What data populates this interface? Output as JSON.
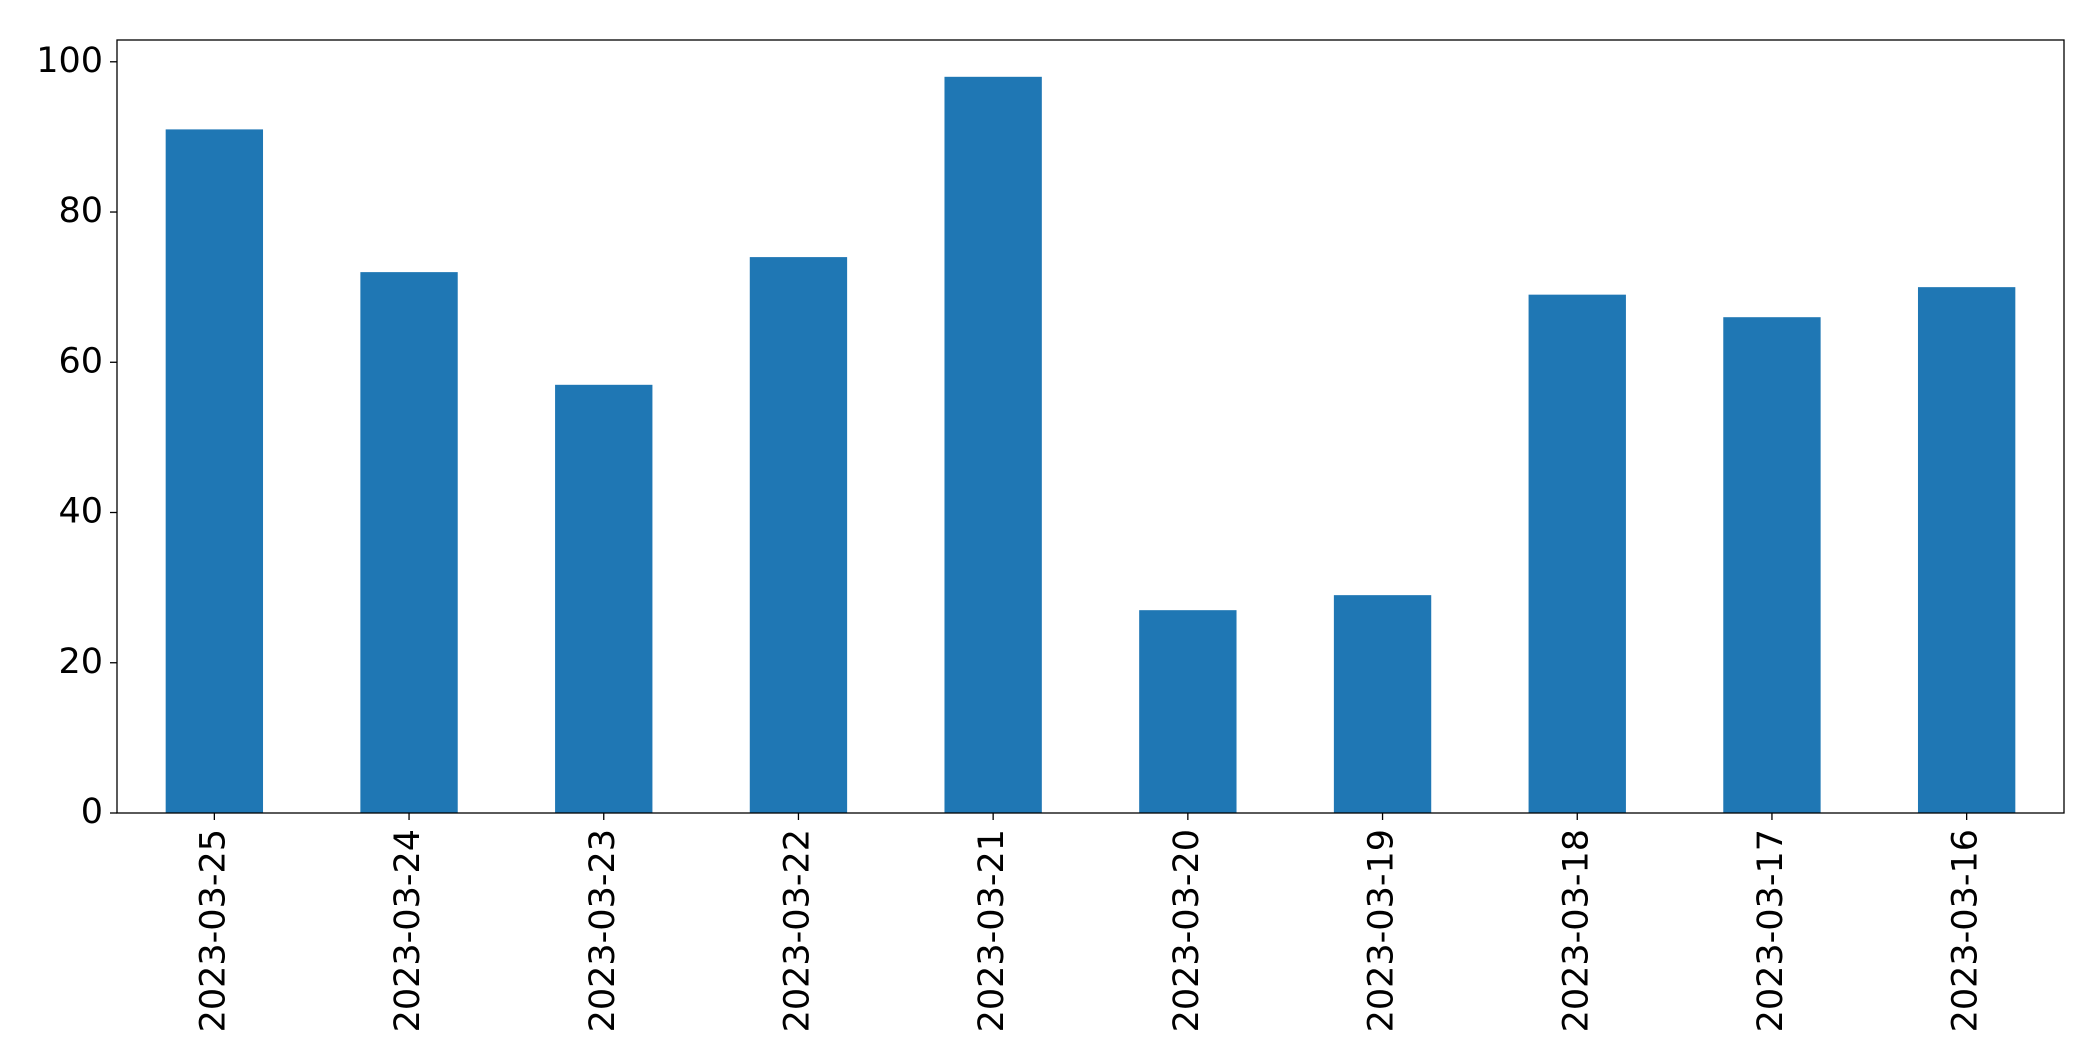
{
  "chart_data": {
    "type": "bar",
    "categories": [
      "2023-03-25",
      "2023-03-24",
      "2023-03-23",
      "2023-03-22",
      "2023-03-21",
      "2023-03-20",
      "2023-03-19",
      "2023-03-18",
      "2023-03-17",
      "2023-03-16"
    ],
    "values": [
      91,
      72,
      57,
      74,
      98,
      27,
      29,
      69,
      66,
      70
    ],
    "color": "#1f77b4",
    "ylim": [
      0,
      102.9
    ],
    "yticks": [
      0,
      20,
      40,
      60,
      80,
      100
    ],
    "grid": false
  }
}
